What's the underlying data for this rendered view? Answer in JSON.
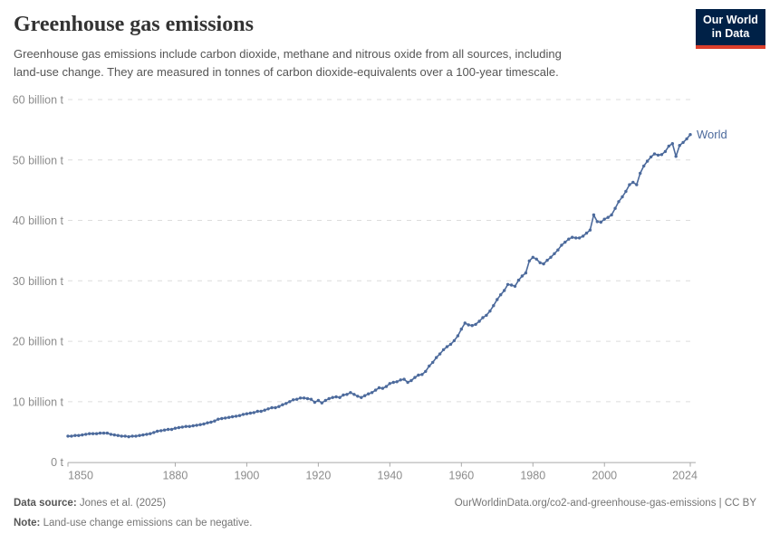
{
  "header": {
    "title": "Greenhouse gas emissions",
    "subtitle_line1": "Greenhouse gas emissions include carbon dioxide, methane and nitrous oxide from all sources, including",
    "subtitle_line2": "land-use change. They are measured in tonnes of carbon dioxide-equivalents over a 100-year timescale.",
    "logo": {
      "line1": "Our World",
      "line2": "in Data",
      "bg_color": "#002147",
      "accent_color": "#dc3e2b"
    }
  },
  "chart_data": {
    "type": "line",
    "title": "Greenhouse gas emissions",
    "xlabel": "",
    "ylabel": "",
    "unit": "billion tonnes CO2-equivalents",
    "xlim": [
      1850,
      2024
    ],
    "ylim": [
      0,
      60
    ],
    "grid": "horizontal-dashed",
    "x_ticks": [
      1850,
      1880,
      1900,
      1920,
      1940,
      1960,
      1980,
      2000,
      2024
    ],
    "y_ticks": [
      0,
      10,
      20,
      30,
      40,
      50,
      60
    ],
    "y_tick_labels": [
      "0 t",
      "10 billion t",
      "20 billion t",
      "30 billion t",
      "40 billion t",
      "50 billion t",
      "60 billion t"
    ],
    "line_color": "#4c6a9c",
    "grid_color": "#dcdcdc",
    "axis_color": "#a9a9a9",
    "tick_label_color": "#8c8c8c",
    "series": [
      {
        "name": "World",
        "color": "#4c6a9c",
        "x_start": 1850,
        "x_step": 1,
        "values": [
          4.3,
          4.3,
          4.4,
          4.4,
          4.5,
          4.6,
          4.7,
          4.7,
          4.7,
          4.8,
          4.8,
          4.8,
          4.6,
          4.5,
          4.4,
          4.3,
          4.3,
          4.2,
          4.3,
          4.3,
          4.4,
          4.5,
          4.6,
          4.7,
          4.9,
          5.1,
          5.2,
          5.3,
          5.4,
          5.4,
          5.6,
          5.7,
          5.8,
          5.9,
          5.9,
          6.0,
          6.1,
          6.2,
          6.3,
          6.5,
          6.6,
          6.8,
          7.1,
          7.2,
          7.3,
          7.4,
          7.5,
          7.6,
          7.7,
          7.9,
          8.0,
          8.1,
          8.2,
          8.4,
          8.4,
          8.6,
          8.8,
          9.0,
          9.0,
          9.2,
          9.5,
          9.7,
          10.0,
          10.3,
          10.4,
          10.6,
          10.6,
          10.5,
          10.4,
          9.9,
          10.2,
          9.8,
          10.2,
          10.5,
          10.7,
          10.8,
          10.7,
          11.1,
          11.2,
          11.5,
          11.2,
          10.9,
          10.7,
          11.0,
          11.3,
          11.5,
          11.9,
          12.3,
          12.2,
          12.5,
          13.0,
          13.2,
          13.3,
          13.6,
          13.7,
          13.2,
          13.5,
          14.0,
          14.4,
          14.5,
          15.0,
          15.9,
          16.5,
          17.3,
          17.9,
          18.6,
          19.1,
          19.5,
          20.1,
          20.9,
          22.0,
          23.0,
          22.7,
          22.6,
          22.8,
          23.3,
          23.9,
          24.3,
          25.0,
          25.9,
          26.9,
          27.7,
          28.4,
          29.4,
          29.3,
          29.1,
          30.1,
          30.8,
          31.3,
          33.3,
          33.9,
          33.6,
          33.0,
          32.8,
          33.4,
          33.9,
          34.5,
          35.1,
          35.9,
          36.4,
          36.9,
          37.2,
          37.1,
          37.1,
          37.4,
          37.9,
          38.4,
          40.9,
          39.8,
          39.7,
          40.2,
          40.5,
          40.9,
          42.0,
          43.1,
          43.9,
          44.8,
          45.9,
          46.3,
          45.9,
          47.8,
          49.0,
          49.8,
          50.5,
          51.0,
          50.8,
          50.9,
          51.4,
          52.3,
          52.7,
          50.6,
          52.4,
          52.9,
          53.5,
          54.2
        ]
      }
    ],
    "entity_label": "World"
  },
  "footer": {
    "source_label": "Data source:",
    "source_value": "Jones et al. (2025)",
    "note_label": "Note:",
    "note_value": "Land-use change emissions can be negative.",
    "permalink": "OurWorldinData.org/co2-and-greenhouse-gas-emissions",
    "separator": " | ",
    "license": "CC BY"
  }
}
